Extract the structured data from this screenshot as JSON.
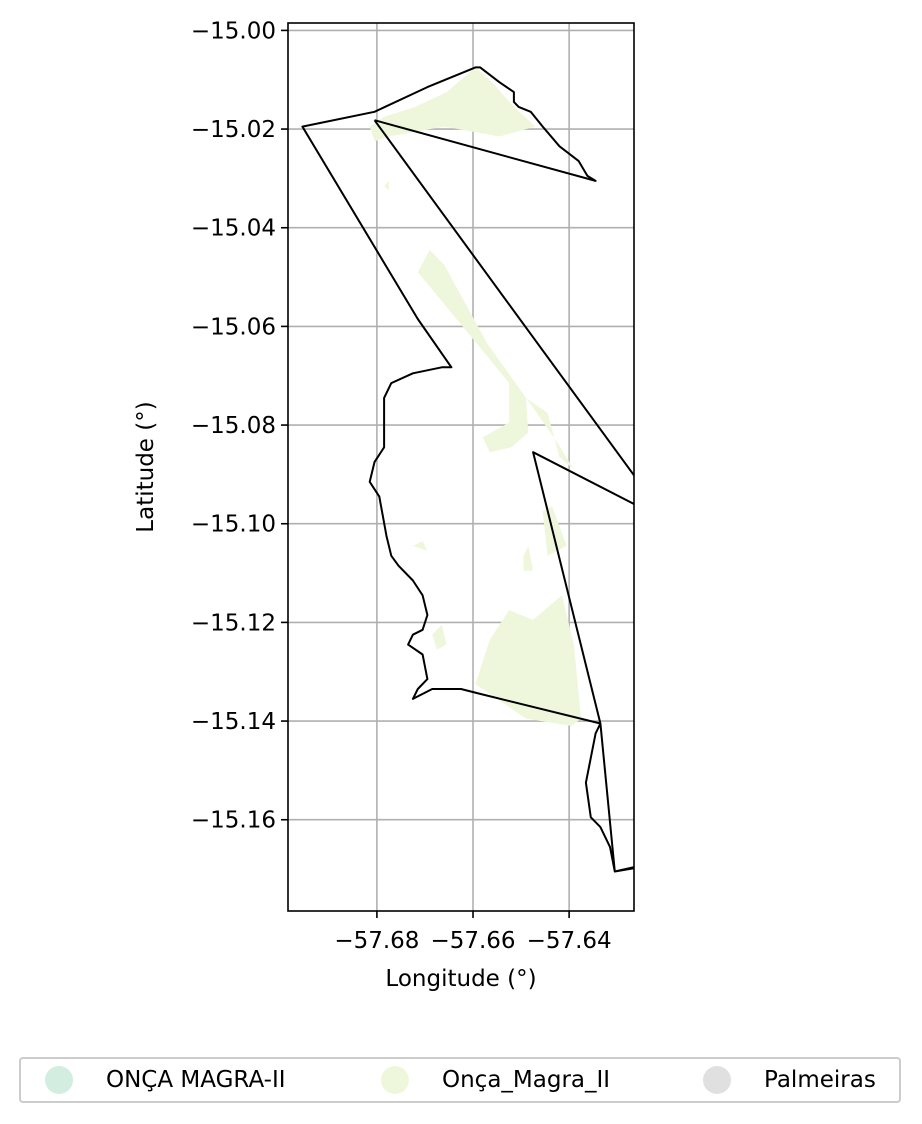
{
  "map": {
    "xlabel": "Longitude (°)",
    "ylabel": "Latitude (°)",
    "xlim": [
      -57.6985,
      -57.6265
    ],
    "ylim": [
      -15.1785,
      -14.9985
    ],
    "x_ticks": [
      -57.68,
      -57.66,
      -57.64
    ],
    "x_tick_labels": [
      "−57.68",
      "−57.66",
      "−57.64"
    ],
    "y_ticks": [
      -15.0,
      -15.02,
      -15.04,
      -15.06,
      -15.08,
      -15.1,
      -15.12,
      -15.14,
      -15.16
    ],
    "y_tick_labels": [
      "−15.00",
      "−15.02",
      "−15.04",
      "−15.06",
      "−15.08",
      "−15.10",
      "−15.12",
      "−15.14",
      "−15.16"
    ],
    "grid": true,
    "colors": {
      "onca_magra_ii_upper": "#d3ede0",
      "onca_magra_ii": "#eef7dc",
      "palmeiras": "#e0e0e0",
      "boundary": "#000000",
      "grid": "#b0b0b0"
    },
    "fill_regions": [
      [
        [
          -57.6815,
          -15.0195
        ],
        [
          -57.6785,
          -15.0175
        ],
        [
          -57.672,
          -15.0155
        ],
        [
          -57.6655,
          -15.0125
        ],
        [
          -57.6595,
          -15.0075
        ],
        [
          -57.656,
          -15.0105
        ],
        [
          -57.6515,
          -15.0155
        ],
        [
          -57.647,
          -15.0195
        ],
        [
          -57.6545,
          -15.0215
        ],
        [
          -57.666,
          -15.0195
        ],
        [
          -57.6775,
          -15.0215
        ],
        [
          -57.6805,
          -15.0225
        ]
      ],
      [
        [
          -57.6715,
          -15.049
        ],
        [
          -57.669,
          -15.0445
        ],
        [
          -57.666,
          -15.0475
        ],
        [
          -57.657,
          -15.0635
        ],
        [
          -57.6475,
          -15.0765
        ],
        [
          -57.6425,
          -15.0835
        ],
        [
          -57.639,
          -15.089
        ],
        [
          -57.642,
          -15.0865
        ],
        [
          -57.6445,
          -15.0775
        ],
        [
          -57.649,
          -15.0745
        ],
        [
          -57.6485,
          -15.0815
        ],
        [
          -57.652,
          -15.0845
        ],
        [
          -57.6565,
          -15.0855
        ],
        [
          -57.658,
          -15.0825
        ],
        [
          -57.6525,
          -15.0795
        ],
        [
          -57.6525,
          -15.0715
        ],
        [
          -57.6575,
          -15.0655
        ]
      ],
      [
        [
          -57.6455,
          -15.0975
        ],
        [
          -57.6435,
          -15.0965
        ],
        [
          -57.6405,
          -15.1045
        ],
        [
          -57.6445,
          -15.1065
        ]
      ],
      [
        [
          -57.6415,
          -15.1145
        ],
        [
          -57.6475,
          -15.1195
        ],
        [
          -57.6525,
          -15.1175
        ],
        [
          -57.6565,
          -15.1235
        ],
        [
          -57.6595,
          -15.1325
        ],
        [
          -57.6565,
          -15.1345
        ],
        [
          -57.649,
          -15.1395
        ],
        [
          -57.6395,
          -15.141
        ],
        [
          -57.6375,
          -15.1395
        ],
        [
          -57.639,
          -15.1245
        ]
      ],
      [
        [
          -57.6785,
          -15.0315
        ],
        [
          -57.6775,
          -15.0305
        ],
        [
          -57.6775,
          -15.0325
        ]
      ],
      [
        [
          -57.6725,
          -15.1045
        ],
        [
          -57.6705,
          -15.1035
        ],
        [
          -57.6695,
          -15.1055
        ]
      ],
      [
        [
          -57.6495,
          -15.1065
        ],
        [
          -57.6485,
          -15.1045
        ],
        [
          -57.6475,
          -15.1095
        ],
        [
          -57.6495,
          -15.1095
        ]
      ],
      [
        [
          -57.6665,
          -15.1205
        ],
        [
          -57.6655,
          -15.1245
        ],
        [
          -57.6675,
          -15.1255
        ],
        [
          -57.6685,
          -15.1225
        ]
      ]
    ],
    "boundary": [
      [
        -57.6805,
        -15.0182
      ],
      [
        -57.6345,
        -15.0305
      ],
      [
        -57.6362,
        -15.0295
      ],
      [
        -57.638,
        -15.0265
      ],
      [
        -57.642,
        -15.0235
      ],
      [
        -57.6455,
        -15.0195
      ],
      [
        -57.648,
        -15.0165
      ],
      [
        -57.6505,
        -15.0155
      ],
      [
        -57.6515,
        -15.0145
      ],
      [
        -57.6515,
        -15.0125
      ],
      [
        -57.6545,
        -15.0105
      ],
      [
        -57.6585,
        -15.0075
      ],
      [
        -57.6595,
        -15.0075
      ],
      [
        -57.6695,
        -15.0115
      ],
      [
        -57.6805,
        -15.0165
      ],
      [
        -57.6955,
        -15.0195
      ],
      [
        -57.6715,
        -15.0585
      ],
      [
        -57.6645,
        -15.0683
      ],
      [
        -57.6665,
        -15.0683
      ],
      [
        -57.6725,
        -15.0695
      ],
      [
        -57.677,
        -15.0715
      ],
      [
        -57.6785,
        -15.0745
      ],
      [
        -57.6785,
        -15.0845
      ],
      [
        -57.6805,
        -15.0875
      ],
      [
        -57.6815,
        -15.0915
      ],
      [
        -57.6795,
        -15.0945
      ],
      [
        -57.678,
        -15.1025
      ],
      [
        -57.677,
        -15.1065
      ],
      [
        -57.6755,
        -15.1085
      ],
      [
        -57.6725,
        -15.1115
      ],
      [
        -57.6705,
        -15.1145
      ],
      [
        -57.6695,
        -15.1185
      ],
      [
        -57.6705,
        -15.1215
      ],
      [
        -57.6725,
        -15.1225
      ],
      [
        -57.6735,
        -15.1245
      ],
      [
        -57.6705,
        -15.1265
      ],
      [
        -57.6695,
        -15.1315
      ],
      [
        -57.6715,
        -15.1335
      ],
      [
        -57.6725,
        -15.1355
      ],
      [
        -57.6685,
        -15.1335
      ],
      [
        -57.6625,
        -15.1335
      ],
      [
        -57.6585,
        -15.1345
      ],
      [
        -57.6335,
        -15.1405
      ],
      [
        -57.6345,
        -15.1425
      ],
      [
        -57.6365,
        -15.1525
      ],
      [
        -57.6355,
        -15.1595
      ],
      [
        -57.6335,
        -15.1615
      ],
      [
        -57.6315,
        -15.1655
      ],
      [
        -57.6305,
        -15.1705
      ],
      [
        -57.6245,
        -15.1695
      ],
      [
        -57.6215,
        -15.1685
      ],
      [
        -57.6305,
        -15.1705
      ],
      [
        -57.6335,
        -15.1405
      ],
      [
        -57.6475,
        -15.0855
      ],
      [
        -57.6195,
        -15.0995
      ],
      [
        -57.6805,
        -15.0182
      ]
    ]
  },
  "legend": {
    "items": [
      {
        "label": "ONÇA MAGRA-II",
        "color": "#d3ede0"
      },
      {
        "label": "Onça_Magra_II",
        "color": "#eef7dc"
      },
      {
        "label": "Palmeiras",
        "color": "#e0e0e0"
      }
    ]
  }
}
